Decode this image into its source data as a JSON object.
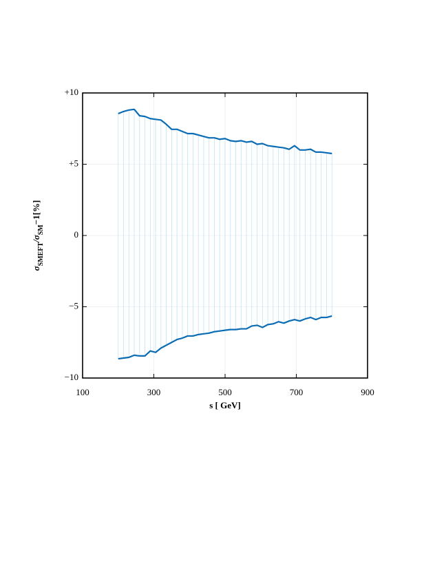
{
  "chart_data": {
    "type": "band",
    "xlabel": "s [ GeV]",
    "ylabel": [
      "σ",
      "SMEFT",
      "/σ",
      "SM",
      "−1[%]"
    ],
    "x": [
      200,
      215,
      230,
      245,
      260,
      275,
      290,
      305,
      320,
      335,
      350,
      365,
      380,
      395,
      410,
      425,
      440,
      455,
      470,
      485,
      500,
      515,
      530,
      545,
      560,
      575,
      590,
      605,
      620,
      635,
      650,
      665,
      680,
      695,
      710,
      725,
      740,
      755,
      770,
      785,
      800
    ],
    "series": [
      {
        "color": "#0a6cb5",
        "values": [
          8.55,
          8.7,
          8.8,
          8.85,
          8.4,
          8.35,
          8.2,
          8.15,
          8.1,
          7.8,
          7.45,
          7.45,
          7.3,
          7.15,
          7.15,
          7.05,
          6.95,
          6.85,
          6.85,
          6.75,
          6.8,
          6.65,
          6.6,
          6.65,
          6.55,
          6.6,
          6.4,
          6.45,
          6.3,
          6.25,
          6.2,
          6.15,
          6.05,
          6.3,
          6.0,
          6.0,
          6.05,
          5.85,
          5.85,
          5.8,
          5.75
        ]
      },
      {
        "color": "#0a6cb5",
        "values": [
          -8.65,
          -8.6,
          -8.55,
          -8.4,
          -8.45,
          -8.45,
          -8.1,
          -8.2,
          -7.9,
          -7.7,
          -7.5,
          -7.3,
          -7.2,
          -7.05,
          -7.05,
          -6.95,
          -6.9,
          -6.85,
          -6.75,
          -6.7,
          -6.65,
          -6.6,
          -6.6,
          -6.55,
          -6.55,
          -6.35,
          -6.3,
          -6.45,
          -6.25,
          -6.2,
          -6.05,
          -6.15,
          -6.0,
          -5.9,
          -6.0,
          -5.85,
          -5.75,
          -5.9,
          -5.75,
          -5.75,
          -5.65
        ]
      }
    ],
    "fill_color": "#bfe4f2",
    "xlim": [
      100,
      900
    ],
    "xticks": [
      100,
      300,
      500,
      700,
      900
    ],
    "ylim": [
      -10,
      10
    ],
    "yticks": [
      {
        "value": -10,
        "label": "−10"
      },
      {
        "value": -5,
        "label": "−5"
      },
      0,
      {
        "value": 5,
        "label": "+5"
      },
      {
        "value": 10,
        "label": "+10"
      }
    ],
    "grid": true
  }
}
